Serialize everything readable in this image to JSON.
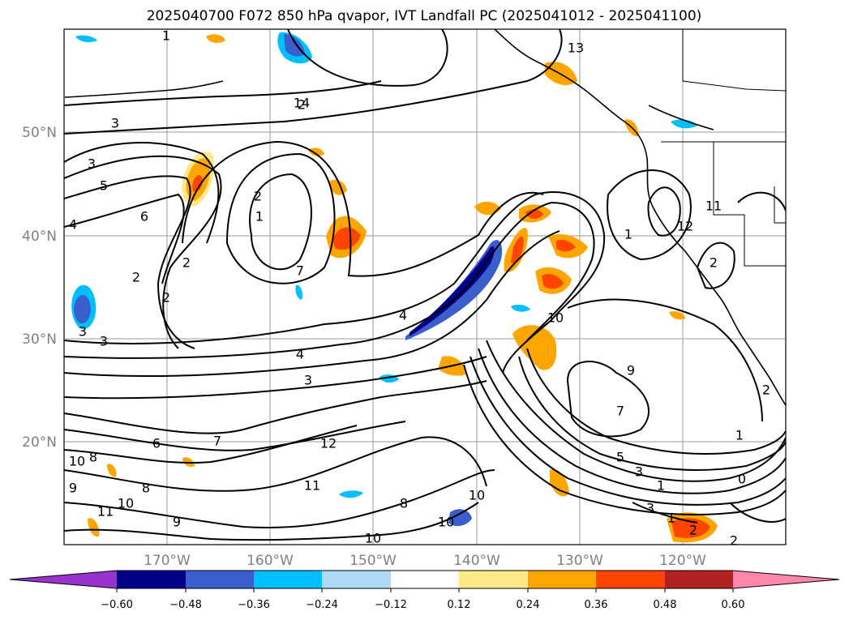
{
  "title": "2025040700 F072 850 hPa qvapor, IVT Landfall PC (2025041012 - 2025041100)",
  "lat_labels": [
    "50°N",
    "40°N",
    "30°N",
    "20°N"
  ],
  "lon_labels": [
    "170°W",
    "160°W",
    "150°W",
    "140°W",
    "130°W",
    "120°W"
  ],
  "colorbar": {
    "ticks": [
      "−0.60",
      "−0.48",
      "−0.36",
      "−0.24",
      "−0.12",
      "0.12",
      "0.24",
      "0.36",
      "0.48",
      "0.60"
    ],
    "colors": [
      "#9933cc",
      "#00008b",
      "#3a5fcd",
      "#00bfff",
      "#add8f6",
      "#ffffff",
      "#ffe88a",
      "#ffa500",
      "#ff4500",
      "#b22222",
      "#ff88aa"
    ]
  },
  "map": {
    "lat_range": [
      10,
      60
    ],
    "lon_range": [
      -180,
      -110
    ],
    "gridlines": true,
    "contour_labels": [
      "1",
      "2",
      "3",
      "2",
      "3",
      "5",
      "6",
      "4",
      "2",
      "1",
      "2",
      "7",
      "2",
      "3",
      "3",
      "4",
      "4",
      "3",
      "6",
      "7",
      "10",
      "8",
      "8",
      "9",
      "10",
      "9",
      "8",
      "11",
      "10",
      "10",
      "10",
      "11",
      "12",
      "10",
      "9",
      "7",
      "5",
      "3",
      "1",
      "0",
      "1",
      "2",
      "3",
      "1",
      "2",
      "2",
      "1",
      "2",
      "11",
      "12",
      "13",
      "14",
      "3",
      "2",
      "4",
      "2",
      "2",
      "1"
    ]
  }
}
